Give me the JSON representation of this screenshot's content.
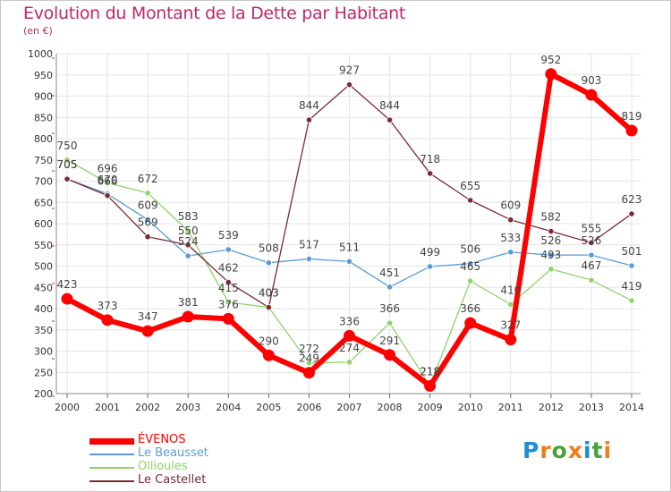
{
  "title": "Evolution du Montant de la Dette par Habitant",
  "unit": "(en €)",
  "logo": {
    "text": "Proxiti",
    "letter_colors": [
      "#1a8fd6",
      "#f07d1a",
      "#49a23a",
      "#f07d1a",
      "#1a8fd6",
      "#49a23a",
      "#f07d1a"
    ]
  },
  "chart_data": {
    "type": "line",
    "title": "Evolution du Montant de la Dette par Habitant",
    "ylabel": "(en €)",
    "xlabel": "",
    "ylim": [
      200,
      1000
    ],
    "yticks": [
      200,
      250,
      300,
      350,
      400,
      450,
      500,
      550,
      600,
      650,
      700,
      750,
      800,
      850,
      900,
      950,
      1000
    ],
    "grid": true,
    "legend_position": "bottom-left",
    "categories": [
      "2000",
      "2001",
      "2002",
      "2003",
      "2004",
      "2005",
      "2006",
      "2007",
      "2008",
      "2009",
      "2010",
      "2011",
      "2012",
      "2013",
      "2014"
    ],
    "series": [
      {
        "name": "ÉVENOS",
        "color": "#ff0000",
        "values": [
          423,
          373,
          347,
          381,
          376,
          290,
          249,
          336,
          291,
          218,
          366,
          327,
          952,
          903,
          819
        ]
      },
      {
        "name": "Le Beausset",
        "color": "#5b9bd5",
        "values": [
          705,
          670,
          609,
          524,
          539,
          508,
          517,
          511,
          451,
          499,
          506,
          533,
          526,
          526,
          501
        ]
      },
      {
        "name": "Ollioules",
        "color": "#8fd36a",
        "values": [
          750,
          696,
          672,
          583,
          415,
          403,
          272,
          274,
          366,
          218,
          465,
          410,
          493,
          467,
          419
        ]
      },
      {
        "name": "Le Castellet",
        "color": "#7a2a35",
        "values": [
          705,
          666,
          569,
          550,
          462,
          403,
          844,
          927,
          844,
          718,
          655,
          609,
          582,
          555,
          623
        ]
      }
    ]
  }
}
